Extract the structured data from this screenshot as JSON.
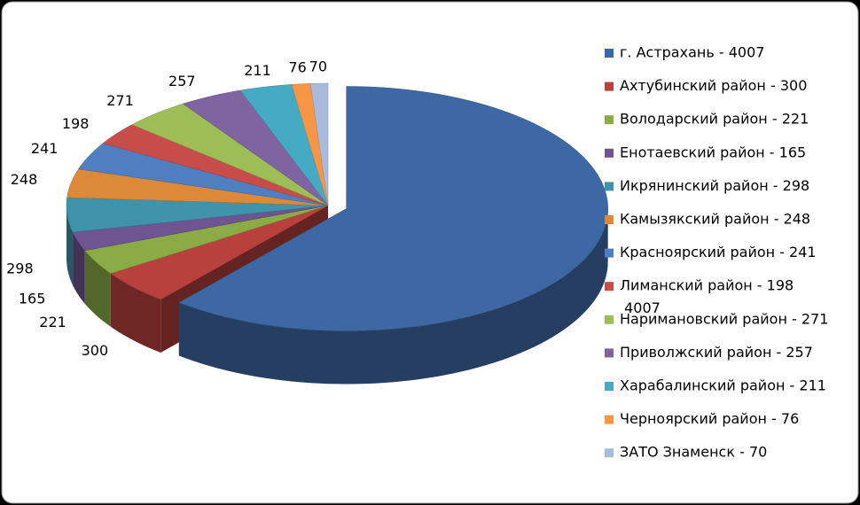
{
  "chart_data": {
    "type": "pie3d",
    "categories": [
      "г. Астрахань - 4007",
      "Ахтубинский район - 300",
      "Володарский район - 221",
      "Енотаевский район - 165",
      "Икрянинский район - 298",
      "Камызякский район - 248",
      "Красноярский район - 241",
      "Лиманский район - 198",
      "Наримановский район - 271",
      "Приволжский район - 257",
      "Харабалинский район - 211",
      "Черноярский район - 76",
      "ЗАТО Знаменск - 70"
    ],
    "values": [
      4007,
      300,
      221,
      165,
      298,
      248,
      241,
      198,
      271,
      257,
      211,
      76,
      70
    ],
    "colors": [
      "#3d68a3",
      "#b8413e",
      "#8aab46",
      "#6e5490",
      "#3f93ab",
      "#dc8a3a",
      "#4f7fc0",
      "#c64d49",
      "#9dbd57",
      "#8064a2",
      "#45aac4",
      "#f79646",
      "#a9bbdc"
    ],
    "legend": "right"
  }
}
